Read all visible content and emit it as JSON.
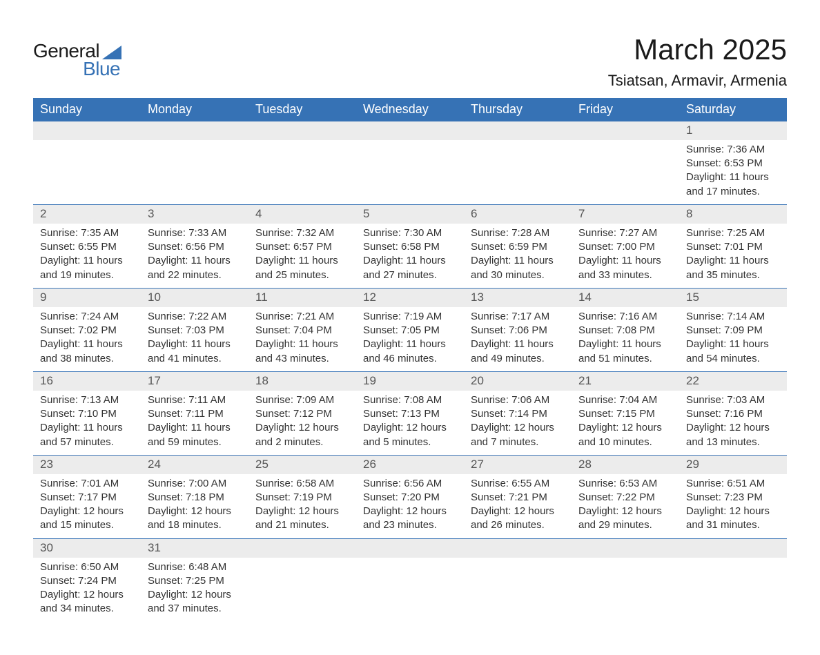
{
  "brand": {
    "name_part1": "General",
    "name_part2": "Blue",
    "color_text": "#1a1a1a",
    "color_accent": "#3672b5"
  },
  "header": {
    "month_title": "March 2025",
    "location": "Tsiatsan, Armavir, Armenia"
  },
  "calendar": {
    "type": "table",
    "header_bg": "#3672b5",
    "header_fg": "#ffffff",
    "daynum_bg": "#ececec",
    "row_border": "#3672b5",
    "body_fg": "#333333",
    "font_family": "Arial",
    "day_headers": [
      "Sunday",
      "Monday",
      "Tuesday",
      "Wednesday",
      "Thursday",
      "Friday",
      "Saturday"
    ],
    "weeks": [
      [
        null,
        null,
        null,
        null,
        null,
        null,
        {
          "n": "1",
          "sunrise": "7:36 AM",
          "sunset": "6:53 PM",
          "day_h": "11",
          "day_m": "17"
        }
      ],
      [
        {
          "n": "2",
          "sunrise": "7:35 AM",
          "sunset": "6:55 PM",
          "day_h": "11",
          "day_m": "19"
        },
        {
          "n": "3",
          "sunrise": "7:33 AM",
          "sunset": "6:56 PM",
          "day_h": "11",
          "day_m": "22"
        },
        {
          "n": "4",
          "sunrise": "7:32 AM",
          "sunset": "6:57 PM",
          "day_h": "11",
          "day_m": "25"
        },
        {
          "n": "5",
          "sunrise": "7:30 AM",
          "sunset": "6:58 PM",
          "day_h": "11",
          "day_m": "27"
        },
        {
          "n": "6",
          "sunrise": "7:28 AM",
          "sunset": "6:59 PM",
          "day_h": "11",
          "day_m": "30"
        },
        {
          "n": "7",
          "sunrise": "7:27 AM",
          "sunset": "7:00 PM",
          "day_h": "11",
          "day_m": "33"
        },
        {
          "n": "8",
          "sunrise": "7:25 AM",
          "sunset": "7:01 PM",
          "day_h": "11",
          "day_m": "35"
        }
      ],
      [
        {
          "n": "9",
          "sunrise": "7:24 AM",
          "sunset": "7:02 PM",
          "day_h": "11",
          "day_m": "38"
        },
        {
          "n": "10",
          "sunrise": "7:22 AM",
          "sunset": "7:03 PM",
          "day_h": "11",
          "day_m": "41"
        },
        {
          "n": "11",
          "sunrise": "7:21 AM",
          "sunset": "7:04 PM",
          "day_h": "11",
          "day_m": "43"
        },
        {
          "n": "12",
          "sunrise": "7:19 AM",
          "sunset": "7:05 PM",
          "day_h": "11",
          "day_m": "46"
        },
        {
          "n": "13",
          "sunrise": "7:17 AM",
          "sunset": "7:06 PM",
          "day_h": "11",
          "day_m": "49"
        },
        {
          "n": "14",
          "sunrise": "7:16 AM",
          "sunset": "7:08 PM",
          "day_h": "11",
          "day_m": "51"
        },
        {
          "n": "15",
          "sunrise": "7:14 AM",
          "sunset": "7:09 PM",
          "day_h": "11",
          "day_m": "54"
        }
      ],
      [
        {
          "n": "16",
          "sunrise": "7:13 AM",
          "sunset": "7:10 PM",
          "day_h": "11",
          "day_m": "57"
        },
        {
          "n": "17",
          "sunrise": "7:11 AM",
          "sunset": "7:11 PM",
          "day_h": "11",
          "day_m": "59"
        },
        {
          "n": "18",
          "sunrise": "7:09 AM",
          "sunset": "7:12 PM",
          "day_h": "12",
          "day_m": "2"
        },
        {
          "n": "19",
          "sunrise": "7:08 AM",
          "sunset": "7:13 PM",
          "day_h": "12",
          "day_m": "5"
        },
        {
          "n": "20",
          "sunrise": "7:06 AM",
          "sunset": "7:14 PM",
          "day_h": "12",
          "day_m": "7"
        },
        {
          "n": "21",
          "sunrise": "7:04 AM",
          "sunset": "7:15 PM",
          "day_h": "12",
          "day_m": "10"
        },
        {
          "n": "22",
          "sunrise": "7:03 AM",
          "sunset": "7:16 PM",
          "day_h": "12",
          "day_m": "13"
        }
      ],
      [
        {
          "n": "23",
          "sunrise": "7:01 AM",
          "sunset": "7:17 PM",
          "day_h": "12",
          "day_m": "15"
        },
        {
          "n": "24",
          "sunrise": "7:00 AM",
          "sunset": "7:18 PM",
          "day_h": "12",
          "day_m": "18"
        },
        {
          "n": "25",
          "sunrise": "6:58 AM",
          "sunset": "7:19 PM",
          "day_h": "12",
          "day_m": "21"
        },
        {
          "n": "26",
          "sunrise": "6:56 AM",
          "sunset": "7:20 PM",
          "day_h": "12",
          "day_m": "23"
        },
        {
          "n": "27",
          "sunrise": "6:55 AM",
          "sunset": "7:21 PM",
          "day_h": "12",
          "day_m": "26"
        },
        {
          "n": "28",
          "sunrise": "6:53 AM",
          "sunset": "7:22 PM",
          "day_h": "12",
          "day_m": "29"
        },
        {
          "n": "29",
          "sunrise": "6:51 AM",
          "sunset": "7:23 PM",
          "day_h": "12",
          "day_m": "31"
        }
      ],
      [
        {
          "n": "30",
          "sunrise": "6:50 AM",
          "sunset": "7:24 PM",
          "day_h": "12",
          "day_m": "34"
        },
        {
          "n": "31",
          "sunrise": "6:48 AM",
          "sunset": "7:25 PM",
          "day_h": "12",
          "day_m": "37"
        },
        null,
        null,
        null,
        null,
        null
      ]
    ],
    "labels": {
      "sunrise_prefix": "Sunrise: ",
      "sunset_prefix": "Sunset: ",
      "daylight_prefix": "Daylight: ",
      "hours_word": " hours",
      "and_word": "and ",
      "minutes_word": " minutes."
    }
  }
}
